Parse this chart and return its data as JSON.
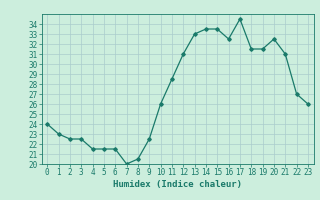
{
  "x": [
    0,
    1,
    2,
    3,
    4,
    5,
    6,
    7,
    8,
    9,
    10,
    11,
    12,
    13,
    14,
    15,
    16,
    17,
    18,
    19,
    20,
    21,
    22,
    23
  ],
  "y": [
    24.0,
    23.0,
    22.5,
    22.5,
    21.5,
    21.5,
    21.5,
    20.0,
    20.5,
    22.5,
    26.0,
    28.5,
    31.0,
    33.0,
    33.5,
    33.5,
    32.5,
    34.5,
    31.5,
    31.5,
    32.5,
    31.0,
    27.0,
    26.0
  ],
  "xlabel": "Humidex (Indice chaleur)",
  "line_color": "#1a7a6a",
  "marker": "D",
  "marker_size": 1.8,
  "bg_color": "#cceedd",
  "grid_color": "#aacccc",
  "ylim": [
    20,
    35
  ],
  "xlim": [
    -0.5,
    23.5
  ],
  "yticks": [
    20,
    21,
    22,
    23,
    24,
    25,
    26,
    27,
    28,
    29,
    30,
    31,
    32,
    33,
    34
  ],
  "xticks": [
    0,
    1,
    2,
    3,
    4,
    5,
    6,
    7,
    8,
    9,
    10,
    11,
    12,
    13,
    14,
    15,
    16,
    17,
    18,
    19,
    20,
    21,
    22,
    23
  ],
  "tick_fontsize": 5.5,
  "label_fontsize": 6.5,
  "line_width": 0.9
}
